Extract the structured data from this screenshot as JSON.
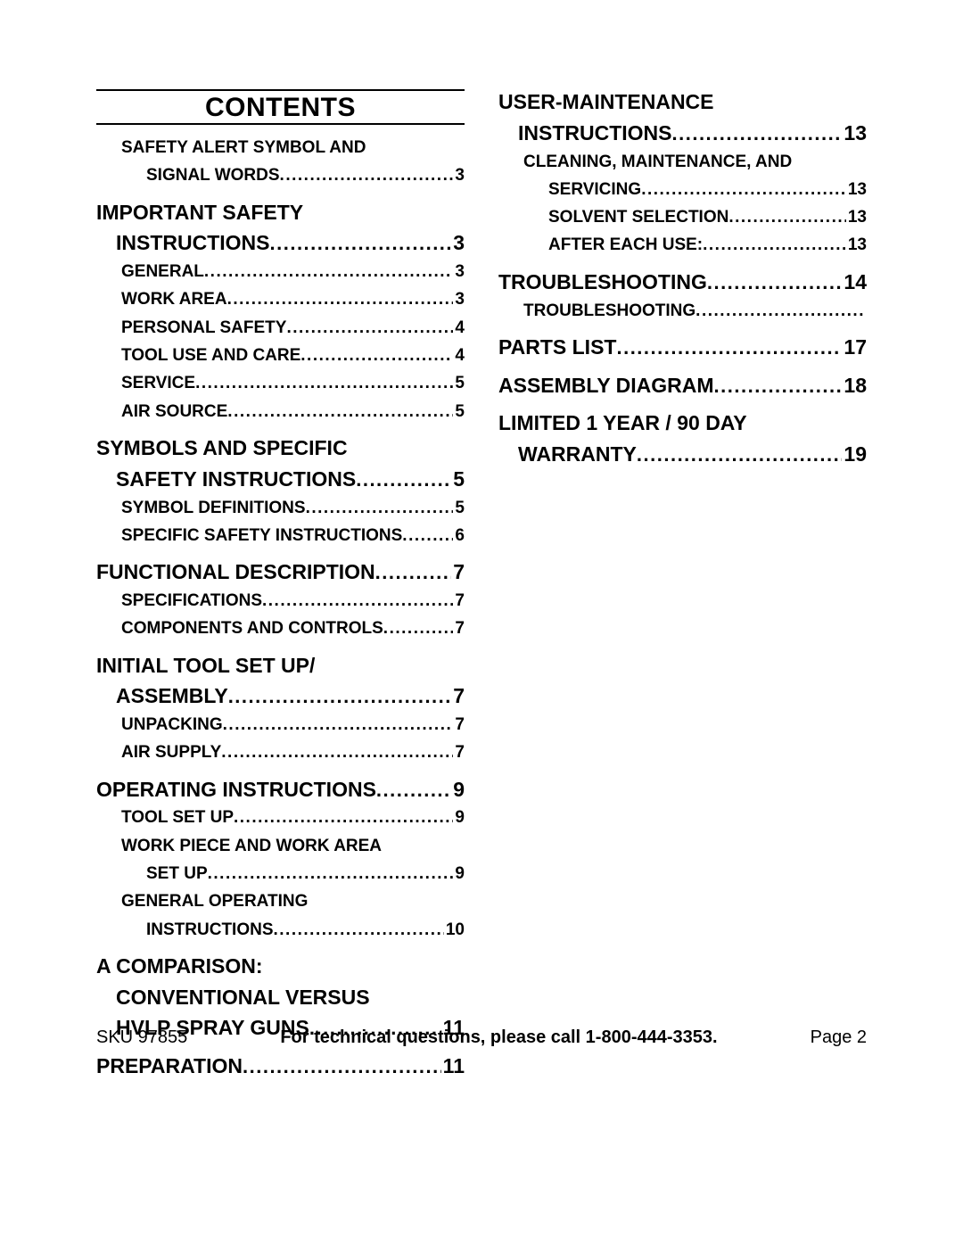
{
  "title": "CONTENTS",
  "footer": {
    "sku": "SKU 97855",
    "mid": "For technical questions, please call 1-800-444-3353.",
    "page": "Page 2"
  },
  "toc": [
    {
      "col": 0,
      "level": 1,
      "lines": [
        "SAFETY ALERT SYMBOL AND",
        "SIGNAL WORDS"
      ],
      "page": "3",
      "first_entry": true
    },
    {
      "col": 0,
      "level": 0,
      "lines": [
        "IMPORTANT SAFETY",
        "INSTRUCTIONS"
      ],
      "page": "3"
    },
    {
      "col": 0,
      "level": 1,
      "lines": [
        "GENERAL"
      ],
      "page": "3"
    },
    {
      "col": 0,
      "level": 1,
      "lines": [
        "WORK AREA"
      ],
      "page": "3"
    },
    {
      "col": 0,
      "level": 1,
      "lines": [
        "PERSONAL SAFETY"
      ],
      "page": "4"
    },
    {
      "col": 0,
      "level": 1,
      "lines": [
        "TOOL USE AND CARE"
      ],
      "page": "4"
    },
    {
      "col": 0,
      "level": 1,
      "lines": [
        "SERVICE"
      ],
      "page": "5"
    },
    {
      "col": 0,
      "level": 1,
      "lines": [
        "AIR SOURCE"
      ],
      "page": "5"
    },
    {
      "col": 0,
      "level": 0,
      "lines": [
        "SYMBOLS AND SPECIFIC",
        "SAFETY INSTRUCTIONS"
      ],
      "page": "5"
    },
    {
      "col": 0,
      "level": 1,
      "lines": [
        "SYMBOL DEFINITIONS"
      ],
      "page": "5"
    },
    {
      "col": 0,
      "level": 1,
      "lines": [
        "SPECIFIC SAFETY INSTRUCTIONS"
      ],
      "page": "6",
      "tight": true
    },
    {
      "col": 0,
      "level": 0,
      "lines": [
        "FUNCTIONAL DESCRIPTION"
      ],
      "page": "7"
    },
    {
      "col": 0,
      "level": 1,
      "lines": [
        "SPECIFICATIONS"
      ],
      "page": "7"
    },
    {
      "col": 0,
      "level": 1,
      "lines": [
        "COMPONENTS AND CONTROLS"
      ],
      "page": "7"
    },
    {
      "col": 0,
      "level": 0,
      "lines": [
        "INITIAL TOOL SET UP/",
        "ASSEMBLY"
      ],
      "page": "7"
    },
    {
      "col": 0,
      "level": 1,
      "lines": [
        "UNPACKING"
      ],
      "page": "7"
    },
    {
      "col": 0,
      "level": 1,
      "lines": [
        "AIR SUPPLY"
      ],
      "page": "7"
    },
    {
      "col": 0,
      "level": 0,
      "lines": [
        "OPERATING INSTRUCTIONS"
      ],
      "page": "9"
    },
    {
      "col": 0,
      "level": 1,
      "lines": [
        "TOOL SET UP"
      ],
      "page": "9"
    },
    {
      "col": 0,
      "level": 1,
      "lines": [
        "WORK PIECE AND WORK AREA",
        "SET UP"
      ],
      "page": "9"
    },
    {
      "col": 0,
      "level": 1,
      "lines": [
        "GENERAL OPERATING",
        "INSTRUCTIONS"
      ],
      "page": "10"
    },
    {
      "col": 0,
      "level": 0,
      "lines": [
        "A COMPARISON:",
        "CONVENTIONAL VERSUS",
        "HVLP SPRAY GUNS"
      ],
      "page": "11"
    },
    {
      "col": 0,
      "level": 0,
      "lines": [
        "PREPARATION"
      ],
      "page": "11"
    },
    {
      "col": 1,
      "level": 0,
      "lines": [
        "USER-MAINTENANCE",
        "INSTRUCTIONS"
      ],
      "page": "13",
      "first_entry": true
    },
    {
      "col": 1,
      "level": 1,
      "lines": [
        "CLEANING, MAINTENANCE, AND",
        "SERVICING"
      ],
      "page": "13"
    },
    {
      "col": 1,
      "level": 2,
      "lines": [
        "SOLVENT SELECTION"
      ],
      "page": "13"
    },
    {
      "col": 1,
      "level": 2,
      "lines": [
        "AFTER EACH USE:"
      ],
      "page": "13"
    },
    {
      "col": 1,
      "level": 0,
      "lines": [
        "TROUBLESHOOTING"
      ],
      "page": "14"
    },
    {
      "col": 1,
      "level": 1,
      "lines": [
        "TROUBLESHOOTING"
      ],
      "page": ""
    },
    {
      "col": 1,
      "level": 0,
      "lines": [
        "PARTS LIST"
      ],
      "page": "17"
    },
    {
      "col": 1,
      "level": 0,
      "lines": [
        "ASSEMBLY DIAGRAM"
      ],
      "page": "18"
    },
    {
      "col": 1,
      "level": 0,
      "lines": [
        "LIMITED 1 YEAR / 90 DAY",
        "WARRANTY"
      ],
      "page": "19"
    }
  ]
}
